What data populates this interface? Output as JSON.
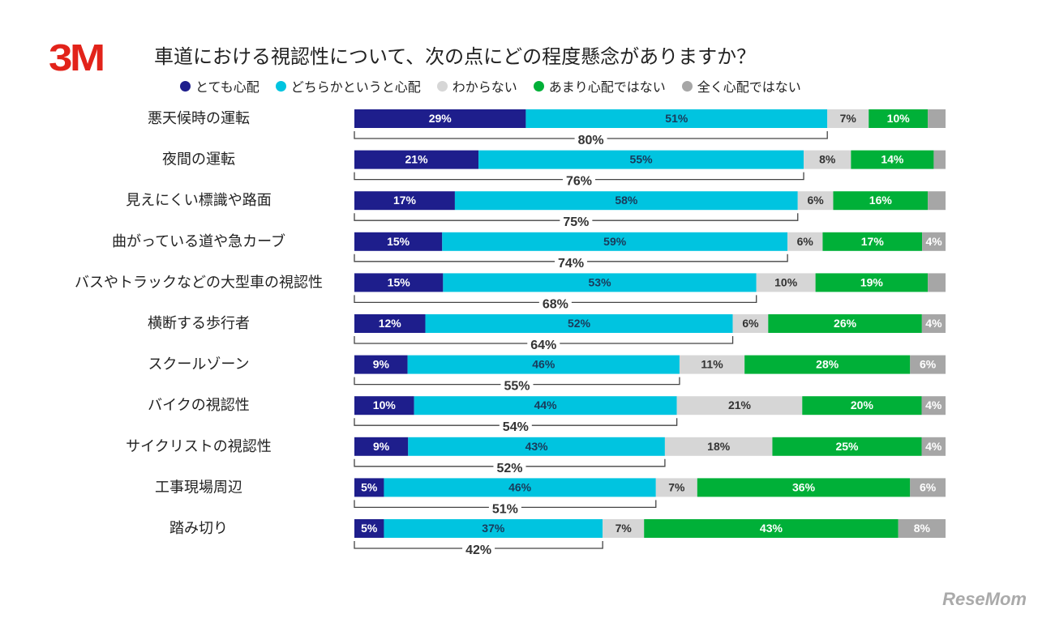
{
  "logo": "3M",
  "watermark": "ReseMom",
  "chart_data": {
    "type": "bar",
    "orientation": "horizontal-stacked-100",
    "title": "車道における視認性について、次の点にどの程度懸念がありますか？",
    "legend_position": "top",
    "series": [
      {
        "name": "とても心配",
        "color": "#1e1e8c",
        "text_color": "#ffffff"
      },
      {
        "name": "どちらかというと心配",
        "color": "#00c4e0",
        "text_color": "#1a3a5a"
      },
      {
        "name": "わからない",
        "color": "#d6d6d6",
        "text_color": "#333333"
      },
      {
        "name": "あまり心配ではない",
        "color": "#00b038",
        "text_color": "#ffffff"
      },
      {
        "name": "全く心配ではない",
        "color": "#a6a6a6",
        "text_color": "#ffffff"
      }
    ],
    "categories": [
      "悪天候時の運転",
      "夜間の運転",
      "見えにくい標識や路面",
      "曲がっている道や急カーブ",
      "バスやトラックなどの大型車の視認性",
      "横断する歩行者",
      "スクールゾーン",
      "バイクの視認性",
      "サイクリストの視認性",
      "工事現場周辺",
      "踏み切り"
    ],
    "values": [
      [
        29,
        51,
        7,
        10,
        3
      ],
      [
        21,
        55,
        8,
        14,
        2
      ],
      [
        17,
        58,
        6,
        16,
        3
      ],
      [
        15,
        59,
        6,
        17,
        4
      ],
      [
        15,
        53,
        10,
        19,
        3
      ],
      [
        12,
        52,
        6,
        26,
        4
      ],
      [
        9,
        46,
        11,
        28,
        6
      ],
      [
        10,
        44,
        21,
        20,
        4
      ],
      [
        9,
        43,
        18,
        25,
        4
      ],
      [
        5,
        46,
        7,
        36,
        6
      ],
      [
        5,
        37,
        7,
        43,
        8
      ]
    ],
    "labels": [
      [
        "29%",
        "51%",
        "7%",
        "10%",
        ""
      ],
      [
        "21%",
        "55%",
        "8%",
        "14%",
        ""
      ],
      [
        "17%",
        "58%",
        "6%",
        "16%",
        ""
      ],
      [
        "15%",
        "59%",
        "6%",
        "17%",
        "4%"
      ],
      [
        "15%",
        "53%",
        "10%",
        "19%",
        ""
      ],
      [
        "12%",
        "52%",
        "6%",
        "26%",
        "4%"
      ],
      [
        "9%",
        "46%",
        "11%",
        "28%",
        "6%"
      ],
      [
        "10%",
        "44%",
        "21%",
        "20%",
        "4%"
      ],
      [
        "9%",
        "43%",
        "18%",
        "25%",
        "4%"
      ],
      [
        "5%",
        "46%",
        "7%",
        "36%",
        "6%"
      ],
      [
        "5%",
        "37%",
        "7%",
        "43%",
        "8%"
      ]
    ],
    "concern_totals": [
      "80%",
      "76%",
      "75%",
      "74%",
      "68%",
      "64%",
      "55%",
      "54%",
      "52%",
      "51%",
      "42%"
    ]
  }
}
